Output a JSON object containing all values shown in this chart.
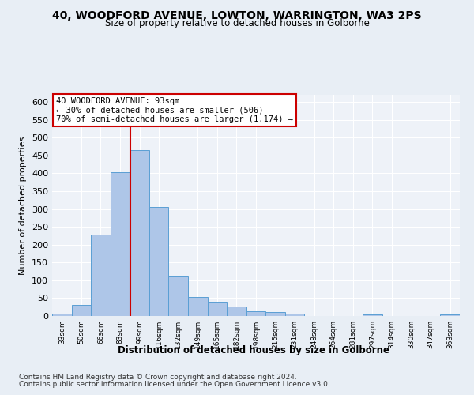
{
  "title": "40, WOODFORD AVENUE, LOWTON, WARRINGTON, WA3 2PS",
  "subtitle": "Size of property relative to detached houses in Golborne",
  "xlabel": "Distribution of detached houses by size in Golborne",
  "ylabel": "Number of detached properties",
  "bins": [
    "33sqm",
    "50sqm",
    "66sqm",
    "83sqm",
    "99sqm",
    "116sqm",
    "132sqm",
    "149sqm",
    "165sqm",
    "182sqm",
    "198sqm",
    "215sqm",
    "231sqm",
    "248sqm",
    "264sqm",
    "281sqm",
    "297sqm",
    "314sqm",
    "330sqm",
    "347sqm",
    "363sqm"
  ],
  "values": [
    6,
    30,
    228,
    403,
    464,
    306,
    110,
    54,
    40,
    27,
    14,
    11,
    7,
    0,
    0,
    0,
    5,
    0,
    0,
    0,
    5
  ],
  "bar_color": "#aec6e8",
  "bar_edge_color": "#5a9fd4",
  "vline_x": 3.53,
  "annotation_line1": "40 WOODFORD AVENUE: 93sqm",
  "annotation_line2": "← 30% of detached houses are smaller (506)",
  "annotation_line3": "70% of semi-detached houses are larger (1,174) →",
  "vline_color": "#cc0000",
  "box_edge_color": "#cc0000",
  "box_face_color": "white",
  "yticks": [
    0,
    50,
    100,
    150,
    200,
    250,
    300,
    350,
    400,
    450,
    500,
    550,
    600
  ],
  "ylim": [
    0,
    620
  ],
  "footer1": "Contains HM Land Registry data © Crown copyright and database right 2024.",
  "footer2": "Contains public sector information licensed under the Open Government Licence v3.0.",
  "background_color": "#e8eef5",
  "plot_bg_color": "#eef2f8"
}
